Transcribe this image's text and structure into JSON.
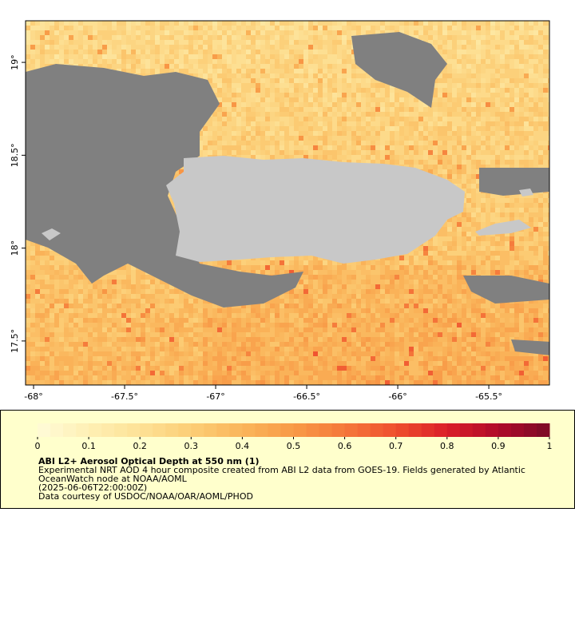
{
  "map": {
    "xlim": [
      -68.044,
      -65.167
    ],
    "ylim": [
      17.263,
      19.224
    ],
    "xticks": [
      {
        "value": -68,
        "label": "-68°"
      },
      {
        "value": -67.5,
        "label": "-67.5°"
      },
      {
        "value": -67,
        "label": "-67°"
      },
      {
        "value": -66.5,
        "label": "-66.5°"
      },
      {
        "value": -66,
        "label": "-66°"
      },
      {
        "value": -65.5,
        "label": "-65.5°"
      }
    ],
    "yticks": [
      {
        "value": 17.5,
        "label": "17.5°"
      },
      {
        "value": 18,
        "label": "18°"
      },
      {
        "value": 18.5,
        "label": "18.5°"
      },
      {
        "value": 19,
        "label": "19°"
      }
    ],
    "nodata_color": "#808080",
    "land_color": "#c8c8c8"
  },
  "colorbar": {
    "range": [
      0,
      1
    ],
    "ticks": [
      0,
      0.1,
      0.2,
      0.3,
      0.4,
      0.5,
      0.6,
      0.7,
      0.8,
      0.9,
      1
    ],
    "colors": [
      "#fffbd8",
      "#fef0b4",
      "#fde196",
      "#fcce76",
      "#fab55a",
      "#f89a46",
      "#f5783a",
      "#ef4f2e",
      "#da1f28",
      "#b00a2a",
      "#7a0a26"
    ],
    "steps": 40
  },
  "legend": {
    "title": "ABI L2+ Aerosol Optical Depth at 550 nm (1)",
    "lines": [
      "Experimental NRT AOD 4 hour composite created from ABI L2 data from GOES-19. Fields generated by Atlantic",
      "OceanWatch node at NOAA/AOML",
      "(2025-06-06T22:00:00Z)",
      "Data courtesy of USDOC/NOAA/OAR/AOML/PHOD"
    ]
  }
}
